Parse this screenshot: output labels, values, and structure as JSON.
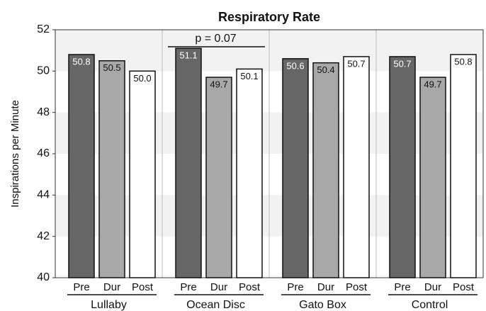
{
  "chart_data": {
    "type": "grouped_bar",
    "title": "Respiratory Rate",
    "y_label": "Inspirations per Minute",
    "categories": [
      "Lullaby",
      "Ocean Disc",
      "Gato Box",
      "Control"
    ],
    "series": [
      {
        "name": "Pre",
        "color": "#666666",
        "label_color": "#ffffff",
        "values": [
          50.8,
          51.1,
          50.6,
          50.7
        ],
        "value_labels": [
          "50.8",
          "51.1",
          "50.6",
          "50.7"
        ]
      },
      {
        "name": "Dur",
        "color": "#a8a8a8",
        "label_color": "#111111",
        "values": [
          50.5,
          49.7,
          50.4,
          49.7
        ],
        "value_labels": [
          "50.5",
          "49.7",
          "50.4",
          "49.7"
        ]
      },
      {
        "name": "Post",
        "color": "#ffffff",
        "label_color": "#111111",
        "values": [
          50.0,
          50.1,
          50.7,
          50.8
        ],
        "value_labels": [
          "50.0",
          "50.1",
          "50.7",
          "50.8"
        ]
      }
    ],
    "annotation": "p = 0.07",
    "ylim": [
      40,
      52
    ],
    "yticks": [
      40,
      42,
      44,
      46,
      48,
      50,
      52
    ],
    "grid": true
  }
}
